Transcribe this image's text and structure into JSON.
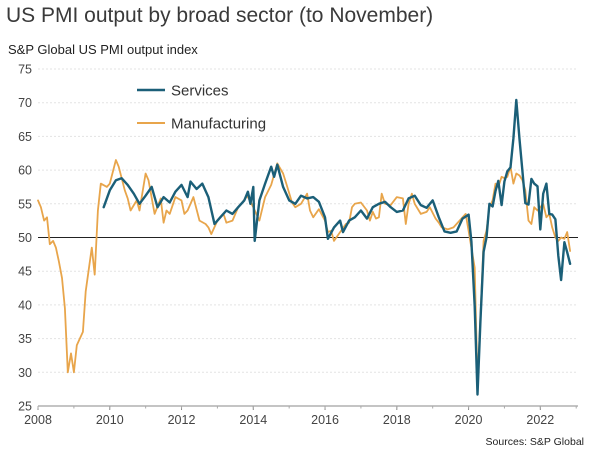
{
  "title": "US PMI output by broad sector (to November)",
  "ylabel": "S&P Global US PMI output index",
  "source": "Sources: S&P Global",
  "chart_data": {
    "type": "line",
    "title": "US PMI output by broad sector (to November)",
    "ylabel": "S&P Global US PMI output index",
    "xlabel": "",
    "ylim": [
      25,
      75
    ],
    "xlim": [
      2008,
      2023.05
    ],
    "x_ticks": [
      "2008",
      "2010",
      "2012",
      "2014",
      "2016",
      "2018",
      "2020",
      "2022"
    ],
    "y_ticks": [
      "25",
      "30",
      "35",
      "40",
      "45",
      "50",
      "55",
      "60",
      "65",
      "70",
      "75"
    ],
    "reference_line": 50,
    "grid": "horizontal",
    "legend_position": "top-left",
    "series": [
      {
        "name": "Services",
        "color": "#1b5f78",
        "points": [
          [
            2009.83,
            54.5
          ],
          [
            2010.0,
            57.0
          ],
          [
            2010.17,
            58.5
          ],
          [
            2010.33,
            58.8
          ],
          [
            2010.5,
            57.8
          ],
          [
            2010.67,
            56.5
          ],
          [
            2010.83,
            55.0
          ],
          [
            2011.0,
            56.2
          ],
          [
            2011.17,
            57.5
          ],
          [
            2011.33,
            54.5
          ],
          [
            2011.5,
            56.0
          ],
          [
            2011.67,
            55.2
          ],
          [
            2011.83,
            56.8
          ],
          [
            2012.0,
            57.8
          ],
          [
            2012.17,
            56.0
          ],
          [
            2012.25,
            58.3
          ],
          [
            2012.42,
            57.2
          ],
          [
            2012.58,
            58.0
          ],
          [
            2012.75,
            56.0
          ],
          [
            2012.92,
            52.0
          ],
          [
            2013.08,
            53.0
          ],
          [
            2013.25,
            54.0
          ],
          [
            2013.42,
            53.5
          ],
          [
            2013.58,
            54.5
          ],
          [
            2013.75,
            55.5
          ],
          [
            2013.85,
            56.8
          ],
          [
            2013.92,
            55.0
          ],
          [
            2014.0,
            57.5
          ],
          [
            2014.04,
            49.5
          ],
          [
            2014.17,
            55.5
          ],
          [
            2014.33,
            58.0
          ],
          [
            2014.5,
            60.5
          ],
          [
            2014.58,
            59.0
          ],
          [
            2014.67,
            60.8
          ],
          [
            2014.83,
            57.5
          ],
          [
            2015.0,
            55.5
          ],
          [
            2015.17,
            55.0
          ],
          [
            2015.33,
            56.2
          ],
          [
            2015.5,
            55.8
          ],
          [
            2015.67,
            56.0
          ],
          [
            2015.83,
            55.3
          ],
          [
            2016.0,
            53.0
          ],
          [
            2016.08,
            49.8
          ],
          [
            2016.25,
            51.5
          ],
          [
            2016.42,
            52.5
          ],
          [
            2016.5,
            50.8
          ],
          [
            2016.67,
            52.5
          ],
          [
            2016.83,
            53.0
          ],
          [
            2017.0,
            54.0
          ],
          [
            2017.17,
            52.8
          ],
          [
            2017.33,
            54.5
          ],
          [
            2017.5,
            55.0
          ],
          [
            2017.67,
            55.3
          ],
          [
            2017.83,
            54.5
          ],
          [
            2018.0,
            53.8
          ],
          [
            2018.17,
            54.0
          ],
          [
            2018.33,
            55.8
          ],
          [
            2018.5,
            56.2
          ],
          [
            2018.67,
            54.8
          ],
          [
            2018.83,
            54.4
          ],
          [
            2019.0,
            55.5
          ],
          [
            2019.17,
            53.0
          ],
          [
            2019.33,
            50.9
          ],
          [
            2019.5,
            50.7
          ],
          [
            2019.67,
            50.9
          ],
          [
            2019.83,
            52.8
          ],
          [
            2020.0,
            53.4
          ],
          [
            2020.08,
            49.4
          ],
          [
            2020.17,
            39.8
          ],
          [
            2020.25,
            26.7
          ],
          [
            2020.33,
            37.5
          ],
          [
            2020.42,
            47.9
          ],
          [
            2020.5,
            50.0
          ],
          [
            2020.58,
            55.0
          ],
          [
            2020.67,
            54.6
          ],
          [
            2020.75,
            56.9
          ],
          [
            2020.83,
            58.4
          ],
          [
            2020.92,
            54.8
          ],
          [
            2021.0,
            58.3
          ],
          [
            2021.08,
            59.8
          ],
          [
            2021.17,
            60.4
          ],
          [
            2021.25,
            64.7
          ],
          [
            2021.33,
            70.4
          ],
          [
            2021.42,
            64.6
          ],
          [
            2021.5,
            59.9
          ],
          [
            2021.58,
            55.1
          ],
          [
            2021.67,
            54.9
          ],
          [
            2021.75,
            58.7
          ],
          [
            2021.83,
            58.0
          ],
          [
            2021.92,
            57.6
          ],
          [
            2022.0,
            51.2
          ],
          [
            2022.08,
            56.5
          ],
          [
            2022.17,
            58.0
          ],
          [
            2022.25,
            53.5
          ],
          [
            2022.33,
            53.4
          ],
          [
            2022.42,
            52.7
          ],
          [
            2022.5,
            47.3
          ],
          [
            2022.58,
            43.7
          ],
          [
            2022.67,
            49.3
          ],
          [
            2022.75,
            47.8
          ],
          [
            2022.83,
            46.1
          ]
        ]
      },
      {
        "name": "Manufacturing",
        "color": "#e8a54b",
        "points": [
          [
            2008.0,
            55.5
          ],
          [
            2008.08,
            54.5
          ],
          [
            2008.17,
            52.5
          ],
          [
            2008.25,
            53.0
          ],
          [
            2008.33,
            49.0
          ],
          [
            2008.42,
            49.5
          ],
          [
            2008.5,
            48.5
          ],
          [
            2008.58,
            46.5
          ],
          [
            2008.67,
            44.0
          ],
          [
            2008.75,
            39.5
          ],
          [
            2008.83,
            30.0
          ],
          [
            2008.92,
            32.8
          ],
          [
            2009.0,
            30.0
          ],
          [
            2009.08,
            34.0
          ],
          [
            2009.25,
            36.0
          ],
          [
            2009.33,
            42.0
          ],
          [
            2009.5,
            48.5
          ],
          [
            2009.58,
            44.5
          ],
          [
            2009.67,
            54.0
          ],
          [
            2009.75,
            58.0
          ],
          [
            2009.92,
            57.5
          ],
          [
            2010.0,
            58.0
          ],
          [
            2010.17,
            61.5
          ],
          [
            2010.25,
            60.5
          ],
          [
            2010.42,
            57.0
          ],
          [
            2010.5,
            55.8
          ],
          [
            2010.58,
            54.0
          ],
          [
            2010.75,
            55.5
          ],
          [
            2010.83,
            54.0
          ],
          [
            2011.0,
            59.5
          ],
          [
            2011.08,
            58.5
          ],
          [
            2011.25,
            53.5
          ],
          [
            2011.42,
            55.8
          ],
          [
            2011.5,
            52.2
          ],
          [
            2011.58,
            54.0
          ],
          [
            2011.67,
            53.5
          ],
          [
            2011.83,
            56.0
          ],
          [
            2012.0,
            55.5
          ],
          [
            2012.08,
            53.5
          ],
          [
            2012.17,
            54.0
          ],
          [
            2012.33,
            56.0
          ],
          [
            2012.5,
            52.5
          ],
          [
            2012.67,
            52.0
          ],
          [
            2012.75,
            51.5
          ],
          [
            2012.83,
            50.5
          ],
          [
            2013.0,
            52.5
          ],
          [
            2013.17,
            53.5
          ],
          [
            2013.25,
            52.2
          ],
          [
            2013.42,
            52.5
          ],
          [
            2013.58,
            54.5
          ],
          [
            2013.67,
            55.0
          ],
          [
            2013.83,
            56.2
          ],
          [
            2014.0,
            54.5
          ],
          [
            2014.17,
            52.5
          ],
          [
            2014.33,
            56.0
          ],
          [
            2014.5,
            57.8
          ],
          [
            2014.67,
            61.0
          ],
          [
            2014.83,
            59.5
          ],
          [
            2014.92,
            58.0
          ],
          [
            2015.08,
            55.2
          ],
          [
            2015.17,
            54.5
          ],
          [
            2015.33,
            55.0
          ],
          [
            2015.5,
            56.5
          ],
          [
            2015.58,
            54.0
          ],
          [
            2015.67,
            53.0
          ],
          [
            2015.83,
            54.2
          ],
          [
            2016.0,
            52.5
          ],
          [
            2016.08,
            50.8
          ],
          [
            2016.17,
            51.0
          ],
          [
            2016.25,
            49.5
          ],
          [
            2016.42,
            50.8
          ],
          [
            2016.58,
            52.0
          ],
          [
            2016.67,
            52.2
          ],
          [
            2016.75,
            54.5
          ],
          [
            2016.83,
            55.0
          ],
          [
            2017.0,
            55.2
          ],
          [
            2017.17,
            54.0
          ],
          [
            2017.25,
            52.5
          ],
          [
            2017.33,
            53.8
          ],
          [
            2017.42,
            52.8
          ],
          [
            2017.5,
            53.0
          ],
          [
            2017.58,
            56.5
          ],
          [
            2017.67,
            55.0
          ],
          [
            2017.83,
            54.8
          ],
          [
            2018.0,
            56.0
          ],
          [
            2018.17,
            55.8
          ],
          [
            2018.25,
            52.0
          ],
          [
            2018.33,
            55.0
          ],
          [
            2018.42,
            56.5
          ],
          [
            2018.5,
            55.0
          ],
          [
            2018.67,
            53.5
          ],
          [
            2018.83,
            53.8
          ],
          [
            2018.92,
            54.5
          ],
          [
            2019.08,
            52.8
          ],
          [
            2019.17,
            52.2
          ],
          [
            2019.25,
            51.5
          ],
          [
            2019.42,
            51.2
          ],
          [
            2019.58,
            51.5
          ],
          [
            2019.75,
            52.5
          ],
          [
            2019.92,
            53.5
          ],
          [
            2020.0,
            51.0
          ],
          [
            2020.17,
            45.5
          ],
          [
            2020.25,
            28.5
          ],
          [
            2020.33,
            38.0
          ],
          [
            2020.42,
            49.5
          ],
          [
            2020.5,
            51.0
          ],
          [
            2020.58,
            54.5
          ],
          [
            2020.67,
            55.5
          ],
          [
            2020.75,
            58.0
          ],
          [
            2020.83,
            57.5
          ],
          [
            2020.92,
            59.0
          ],
          [
            2021.0,
            58.8
          ],
          [
            2021.08,
            59.0
          ],
          [
            2021.17,
            60.5
          ],
          [
            2021.25,
            58.0
          ],
          [
            2021.33,
            59.5
          ],
          [
            2021.42,
            59.2
          ],
          [
            2021.5,
            58.5
          ],
          [
            2021.58,
            57.0
          ],
          [
            2021.67,
            52.5
          ],
          [
            2021.75,
            52.0
          ],
          [
            2021.83,
            54.5
          ],
          [
            2021.92,
            54.0
          ],
          [
            2022.0,
            54.5
          ],
          [
            2022.08,
            55.0
          ],
          [
            2022.17,
            53.0
          ],
          [
            2022.25,
            53.5
          ],
          [
            2022.33,
            51.5
          ],
          [
            2022.42,
            50.0
          ],
          [
            2022.5,
            49.5
          ],
          [
            2022.58,
            50.0
          ],
          [
            2022.67,
            49.8
          ],
          [
            2022.75,
            50.8
          ],
          [
            2022.83,
            48.0
          ]
        ]
      }
    ]
  }
}
